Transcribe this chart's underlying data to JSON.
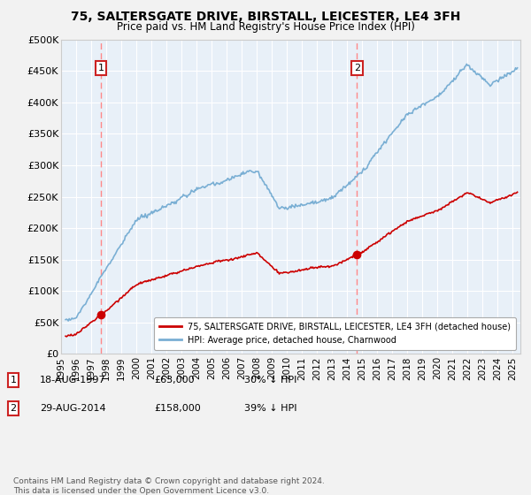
{
  "title": "75, SALTERSGATE DRIVE, BIRSTALL, LEICESTER, LE4 3FH",
  "subtitle": "Price paid vs. HM Land Registry's House Price Index (HPI)",
  "ylim": [
    0,
    500000
  ],
  "yticks": [
    0,
    50000,
    100000,
    150000,
    200000,
    250000,
    300000,
    350000,
    400000,
    450000,
    500000
  ],
  "ytick_labels": [
    "£0",
    "£50K",
    "£100K",
    "£150K",
    "£200K",
    "£250K",
    "£300K",
    "£350K",
    "£400K",
    "£450K",
    "£500K"
  ],
  "xlim_start": 1995.3,
  "xlim_end": 2025.5,
  "xticks": [
    1995,
    1996,
    1997,
    1998,
    1999,
    2000,
    2001,
    2002,
    2003,
    2004,
    2005,
    2006,
    2007,
    2008,
    2009,
    2010,
    2011,
    2012,
    2013,
    2014,
    2015,
    2016,
    2017,
    2018,
    2019,
    2020,
    2021,
    2022,
    2023,
    2024,
    2025
  ],
  "house_color": "#cc0000",
  "hpi_color": "#7aafd4",
  "vline_color": "#ff8888",
  "background_color": "#e8f0f8",
  "grid_color": "#ffffff",
  "sale1_year": 1997.635,
  "sale1_price": 63000,
  "sale2_year": 2014.657,
  "sale2_price": 158000,
  "legend_label_house": "75, SALTERSGATE DRIVE, BIRSTALL, LEICESTER, LE4 3FH (detached house)",
  "legend_label_hpi": "HPI: Average price, detached house, Charnwood",
  "footnote": "Contains HM Land Registry data © Crown copyright and database right 2024.\nThis data is licensed under the Open Government Licence v3.0."
}
